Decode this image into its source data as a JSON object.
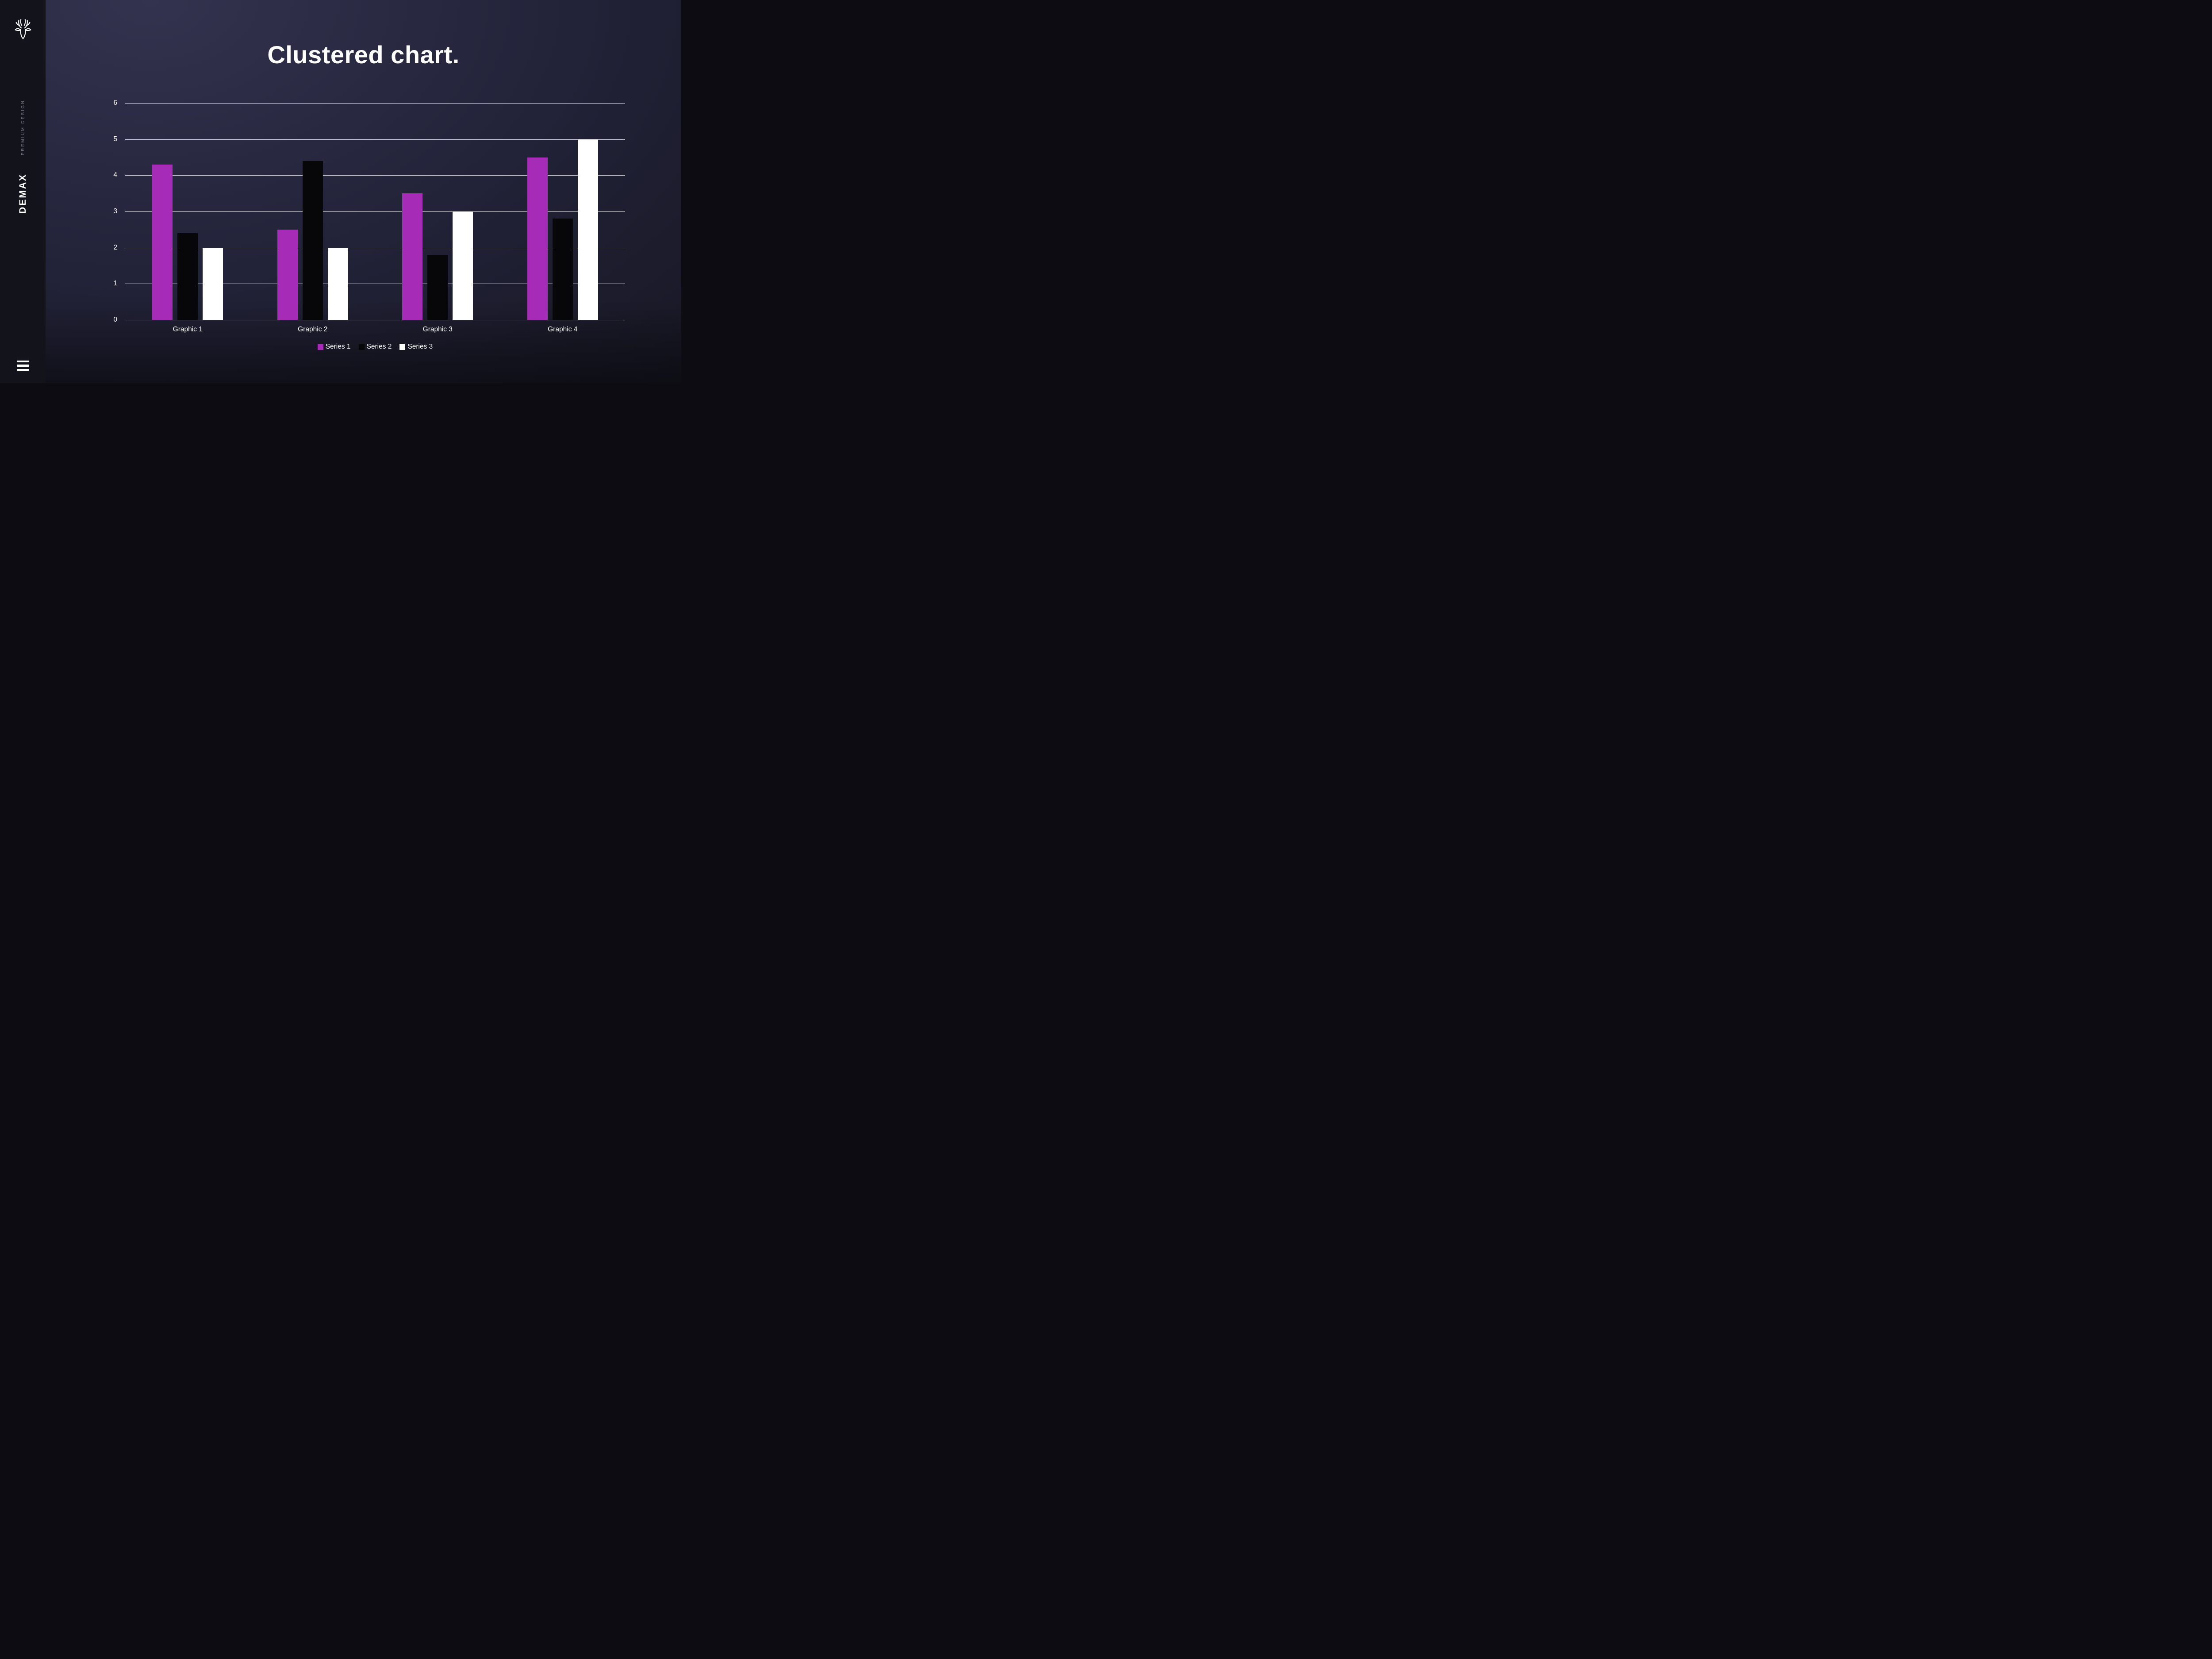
{
  "sidebar": {
    "tagline": "PREMIUM DESIGN",
    "brand": "DEMAX",
    "logo_icon": "deer-stag-icon",
    "menu_icon": "hamburger-menu-icon"
  },
  "title": "Clustered chart.",
  "colors": {
    "background_dark": "#1c1c2b",
    "sidebar_bg": "#13131b",
    "series1": "#a62cb8",
    "series2": "#070709",
    "series3": "#ffffff",
    "text": "#ffffff",
    "gridline": "rgba(255,255,255,0.82)"
  },
  "chart_data": {
    "type": "bar",
    "title": "Clustered chart.",
    "categories": [
      "Graphic 1",
      "Graphic 2",
      "Graphic 3",
      "Graphic 4"
    ],
    "series": [
      {
        "name": "Series 1",
        "color": "#a62cb8",
        "values": [
          4.3,
          2.5,
          3.5,
          4.5
        ]
      },
      {
        "name": "Series 2",
        "color": "#070709",
        "values": [
          2.4,
          4.4,
          1.8,
          2.8
        ]
      },
      {
        "name": "Series 3",
        "color": "#ffffff",
        "values": [
          2.0,
          2.0,
          3.0,
          5.0
        ]
      }
    ],
    "xlabel": "",
    "ylabel": "",
    "ylim": [
      0,
      6
    ],
    "yticks": [
      0,
      1,
      2,
      3,
      4,
      5,
      6
    ],
    "grid": true,
    "legend_position": "bottom"
  }
}
